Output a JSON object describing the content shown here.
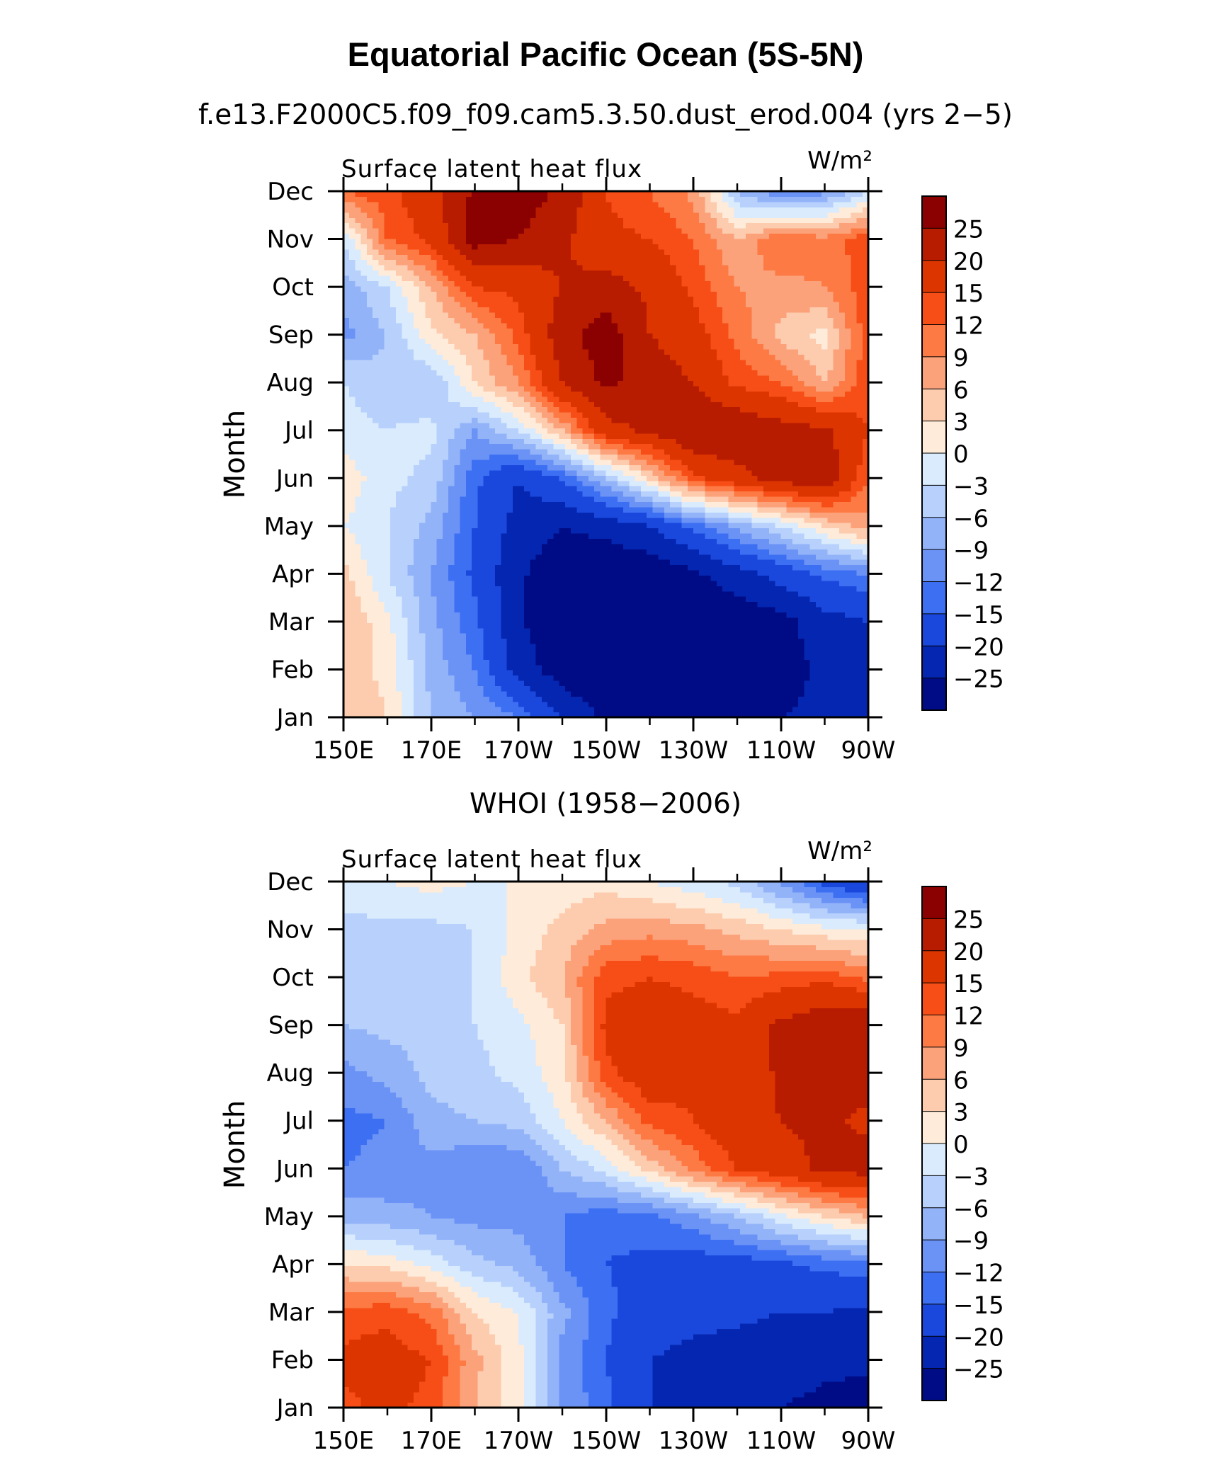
{
  "figure": {
    "title": "Equatorial Pacific Ocean (5S-5N)"
  },
  "colorbar": {
    "levels": [
      "25",
      "20",
      "15",
      "12",
      "9",
      "6",
      "3",
      "0",
      "−3",
      "−6",
      "−9",
      "−12",
      "−15",
      "−20",
      "−25"
    ],
    "colors": [
      "#8b0000",
      "#b81c00",
      "#dc3500",
      "#f74d16",
      "#fd7a44",
      "#fca27b",
      "#fdcbad",
      "#feebd9",
      "#d9ebfd",
      "#b7d1fc",
      "#93b3f9",
      "#6b93f6",
      "#3d6ff3",
      "#1a48dd",
      "#0526b0",
      "#000c85"
    ]
  },
  "chart_data": [
    {
      "type": "heatmap",
      "title": "f.e13.F2000C5.f09_f09.cam5.3.50.dust_erod.004 (yrs 2−5)",
      "left_label": "Surface latent heat flux",
      "units": "W/m²",
      "ylabel": "Month",
      "x_ticks": [
        "150E",
        "170E",
        "170W",
        "150W",
        "130W",
        "110W",
        "90W"
      ],
      "y_ticks": [
        "Jan",
        "Feb",
        "Mar",
        "Apr",
        "May",
        "Jun",
        "Jul",
        "Aug",
        "Sep",
        "Oct",
        "Nov",
        "Dec"
      ],
      "levels": [
        -25,
        -20,
        -15,
        -12,
        -9,
        -6,
        -3,
        0,
        3,
        6,
        9,
        12,
        15,
        20,
        25
      ],
      "x": [
        150,
        160,
        170,
        180,
        190,
        200,
        210,
        220,
        230,
        240,
        250,
        260,
        270
      ],
      "y": [
        "Jan",
        "Feb",
        "Mar",
        "Apr",
        "May",
        "Jun",
        "Jul",
        "Aug",
        "Sep",
        "Oct",
        "Nov",
        "Dec"
      ],
      "z": [
        [
          6,
          3,
          -6,
          -9,
          -12,
          -20,
          -26,
          -28,
          -28,
          -27,
          -25,
          -24,
          -22
        ],
        [
          5,
          2,
          -7,
          -12,
          -22,
          -28,
          -30,
          -30,
          -30,
          -29,
          -27,
          -24,
          -23
        ],
        [
          6,
          1,
          -8,
          -14,
          -24,
          -30,
          -31,
          -31,
          -30,
          -29,
          -27,
          -22,
          -20
        ],
        [
          4,
          -3,
          -9,
          -16,
          -24,
          -29,
          -30,
          -29,
          -26,
          -22,
          -18,
          -14,
          -12
        ],
        [
          0,
          -3,
          -7,
          -15,
          -22,
          -25,
          -23,
          -20,
          -14,
          -8,
          -3,
          3,
          8
        ],
        [
          2,
          -2,
          -4,
          -14,
          -20,
          -15,
          -6,
          3,
          14,
          18,
          22,
          24,
          12
        ],
        [
          -2,
          -3,
          -2,
          -9,
          -3,
          6,
          18,
          21,
          25,
          25,
          22,
          21,
          15
        ],
        [
          -3,
          -5,
          -6,
          3,
          9,
          20,
          26,
          23,
          20,
          14,
          12,
          6,
          14
        ],
        [
          -10,
          -6,
          2,
          6,
          13,
          23,
          28,
          20,
          17,
          11,
          5,
          2,
          14
        ],
        [
          -8,
          -3,
          6,
          15,
          16,
          20,
          22,
          19,
          14,
          9,
          8,
          9,
          14
        ],
        [
          -3,
          12,
          16,
          27,
          25,
          21,
          16,
          15,
          12,
          6,
          12,
          10,
          14
        ],
        [
          12,
          14,
          18,
          26,
          28,
          24,
          15,
          12,
          8,
          -6,
          -12,
          -10,
          -3
        ]
      ]
    },
    {
      "type": "heatmap",
      "title": "WHOI (1958−2006)",
      "left_label": "Surface latent heat flux",
      "units": "W/m²",
      "ylabel": "Month",
      "x_ticks": [
        "150E",
        "170E",
        "170W",
        "150W",
        "130W",
        "110W",
        "90W"
      ],
      "y_ticks": [
        "Jan",
        "Feb",
        "Mar",
        "Apr",
        "May",
        "Jun",
        "Jul",
        "Aug",
        "Sep",
        "Oct",
        "Nov",
        "Dec"
      ],
      "levels": [
        -25,
        -20,
        -15,
        -12,
        -9,
        -6,
        -3,
        0,
        3,
        6,
        9,
        12,
        15,
        20,
        25
      ],
      "x": [
        150,
        160,
        170,
        180,
        190,
        200,
        210,
        220,
        230,
        240,
        250,
        260,
        270
      ],
      "y": [
        "Jan",
        "Feb",
        "Mar",
        "Apr",
        "May",
        "Jun",
        "Jul",
        "Aug",
        "Sep",
        "Oct",
        "Nov",
        "Dec"
      ],
      "z": [
        [
          14,
          16,
          14,
          6,
          1,
          -9,
          -14,
          -20,
          -22,
          -24,
          -25,
          -26,
          -27
        ],
        [
          16,
          17,
          15,
          7,
          1,
          -10,
          -15,
          -20,
          -21,
          -22,
          -23,
          -24,
          -24
        ],
        [
          13,
          14,
          11,
          3,
          0,
          -8,
          -14,
          -18,
          -19,
          -19,
          -20,
          -20,
          -21
        ],
        [
          3,
          2,
          -1,
          -5,
          -7,
          -12,
          -15,
          -16,
          -17,
          -17,
          -16,
          -14,
          -13
        ],
        [
          -7,
          -8,
          -9,
          -10,
          -10,
          -12,
          -14,
          -13,
          -10,
          -6,
          -1,
          3,
          6
        ],
        [
          -12,
          -11,
          -10,
          -12,
          -12,
          -6,
          -2,
          4,
          10,
          15,
          18,
          21,
          22
        ],
        [
          -13,
          -12,
          -7,
          -6,
          -5,
          0,
          6,
          13,
          15,
          18,
          20,
          21,
          19
        ],
        [
          -10,
          -8,
          -5,
          -4,
          -2,
          2,
          14,
          18,
          16,
          16,
          21,
          22,
          22
        ],
        [
          -6,
          -5,
          -5,
          -3,
          -1,
          3,
          16,
          18,
          17,
          16,
          21,
          24,
          25
        ],
        [
          -5,
          -5,
          -4,
          -3,
          2,
          6,
          14,
          15,
          14,
          12,
          13,
          14,
          11
        ],
        [
          -4,
          -4,
          -4,
          -3,
          1,
          4,
          7,
          8,
          7,
          5,
          3,
          1,
          0
        ],
        [
          -1,
          0,
          1,
          0,
          0,
          1,
          2,
          0,
          -2,
          -4,
          -10,
          -16,
          -20
        ]
      ]
    }
  ]
}
